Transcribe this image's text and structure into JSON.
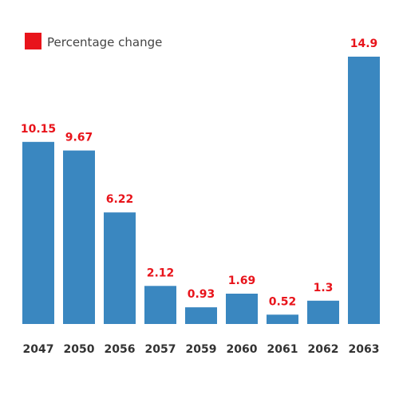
{
  "chart_data": {
    "type": "bar",
    "categories": [
      "2047",
      "2050",
      "2056",
      "2057",
      "2059",
      "2060",
      "2061",
      "2062",
      "2063"
    ],
    "series": [
      {
        "name": "Percentage change",
        "values": [
          10.15,
          9.67,
          6.22,
          2.12,
          0.93,
          1.69,
          0.52,
          1.3,
          14.9
        ]
      }
    ],
    "data_labels": [
      "10.15",
      "9.67",
      "6.22",
      "2.12",
      "0.93",
      "1.69",
      "0.52",
      "1.3",
      "14.9"
    ],
    "title": "",
    "xlabel": "",
    "ylabel": "",
    "ylim": [
      0,
      14.9
    ],
    "grid": false,
    "legend_position": "top-left"
  },
  "colors": {
    "bar": "#3a87c0",
    "legend_swatch": "#e8141b",
    "value_label": "#e8141b"
  }
}
